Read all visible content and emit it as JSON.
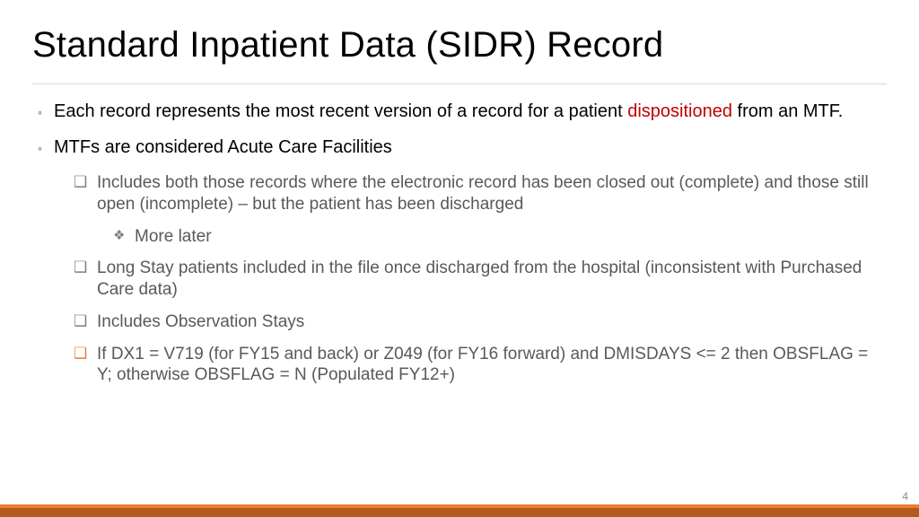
{
  "title": "Standard Inpatient Data (SIDR) Record",
  "pageNumber": "4",
  "colors": {
    "highlight": "#c00000",
    "bodyGray": "#595959",
    "bulletGray": "#7f7f7f",
    "accentOrange": "#ed7d31",
    "footerTop": "#ed7d31",
    "footerBottom": "#b35a1f",
    "ruleColor": "#d9d9d9",
    "background": "#ffffff",
    "titleColor": "#000000"
  },
  "typography": {
    "titleSize": 40,
    "bodySize": 20,
    "subSize": 19,
    "family": "Segoe UI Light"
  },
  "b1": {
    "pre": "Each record represents the most recent version of a record for a patient ",
    "hi": "dispositioned",
    "post": " from an MTF."
  },
  "b2": "MTFs are considered Acute Care Facilities",
  "b2a": "Includes both those records where the electronic record has been closed out (complete) and those still open (incomplete) – but the patient has been discharged",
  "b2a1": "More later",
  "b2b": "Long Stay patients included in the file once discharged from the hospital (inconsistent with Purchased Care data)",
  "b2c": "Includes Observation Stays",
  "b2c1": "If DX1 = V719 (for FY15 and back) or Z049 (for FY16 forward) and DMISDAYS <= 2 then OBSFLAG = Y; otherwise OBSFLAG = N (Populated FY12+)"
}
